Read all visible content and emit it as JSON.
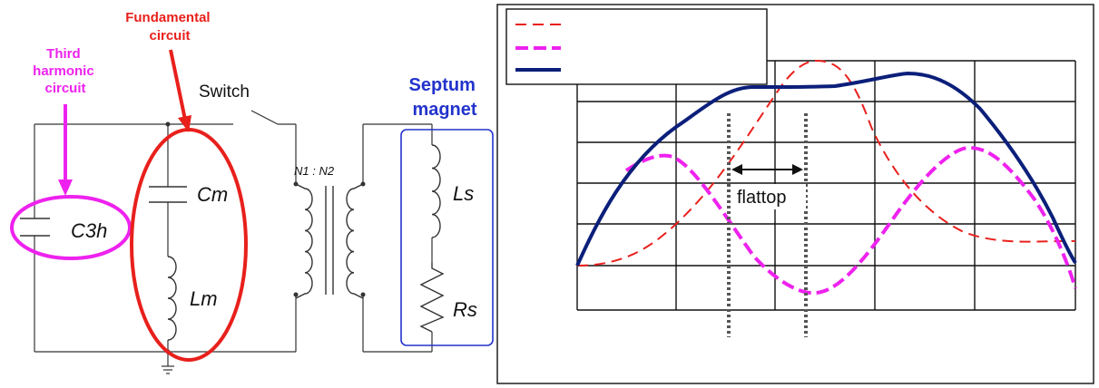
{
  "circuit": {
    "third_harmonic_label": [
      "Third",
      "harmonic",
      "circuit"
    ],
    "fundamental_label": [
      "Fundamental",
      "circuit"
    ],
    "septum_label": [
      "Septum",
      "magnet"
    ],
    "switch_label": "Switch",
    "components": {
      "c3h": "C3h",
      "cm": "Cm",
      "lm": "Lm",
      "ls": "Ls",
      "rs": "Rs",
      "turns_ratio": "N1 : N2"
    }
  },
  "waveform": {
    "flattop_label": "flattop",
    "legend": [
      {
        "style": "dashed",
        "color": "#e8201c"
      },
      {
        "style": "thick-dashed",
        "color": "#ee22ee"
      },
      {
        "style": "solid",
        "color": "#0b1f7a"
      }
    ]
  },
  "colors": {
    "third_harmonic": "#ee22ee",
    "fundamental": "#e8201c",
    "septum": "#2233cc",
    "total": "#0b1f7a",
    "wire": "#333333"
  }
}
